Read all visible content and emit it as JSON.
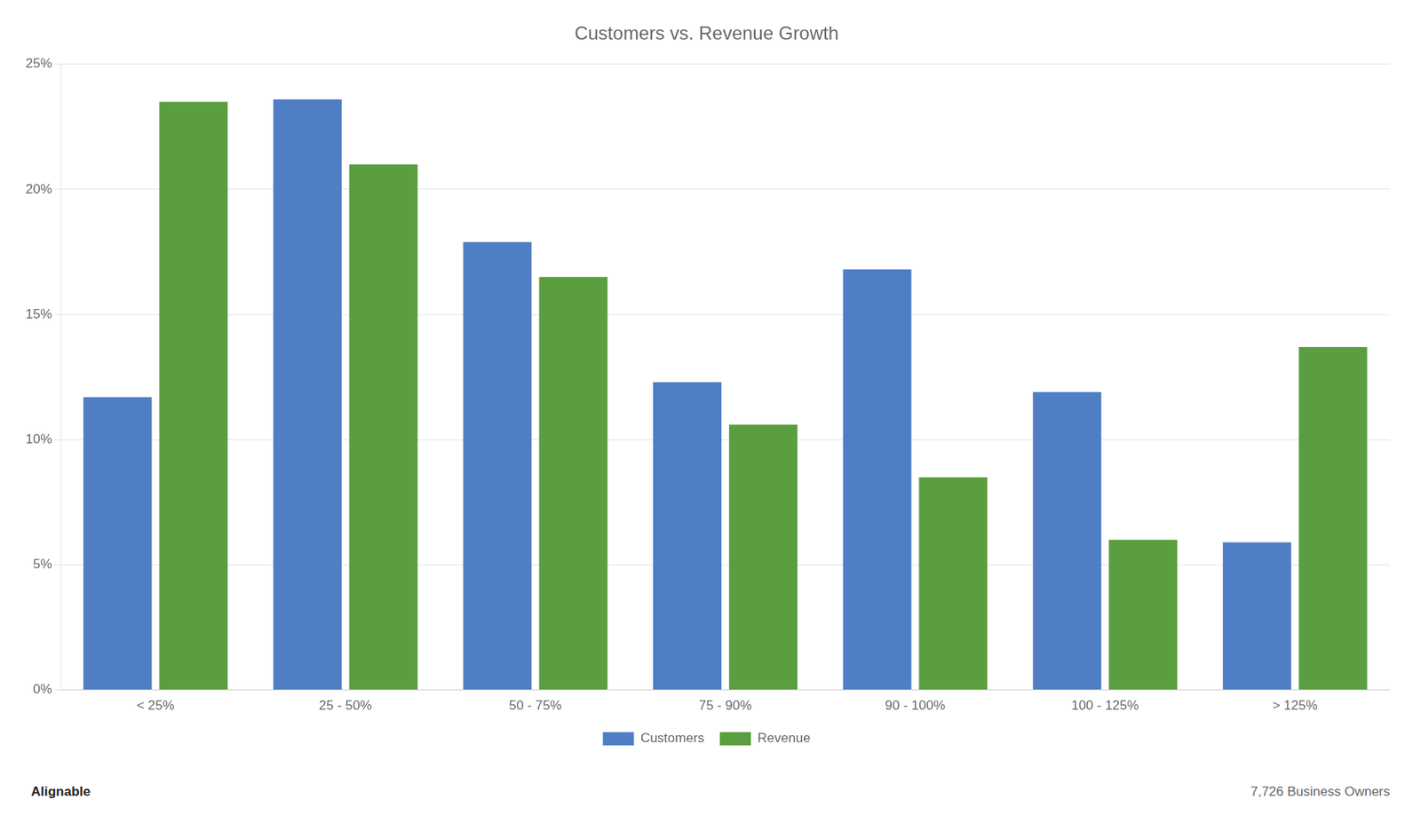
{
  "chart_data": {
    "type": "bar",
    "title": "Customers vs. Revenue Growth",
    "categories": [
      "< 25%",
      "25 - 50%",
      "50 - 75%",
      "75 - 90%",
      "90 - 100%",
      "100 - 125%",
      "> 125%"
    ],
    "series": [
      {
        "name": "Customers",
        "color": "#4F7EC5",
        "values": [
          11.7,
          23.6,
          17.9,
          12.3,
          16.8,
          11.9,
          5.9
        ]
      },
      {
        "name": "Revenue",
        "color": "#5B9E40",
        "values": [
          23.5,
          21.0,
          16.5,
          10.6,
          8.5,
          6.0,
          13.7
        ]
      }
    ],
    "ylim": [
      0,
      25
    ],
    "yticks": [
      {
        "value": 0,
        "label": "0%"
      },
      {
        "value": 5,
        "label": "5%"
      },
      {
        "value": 10,
        "label": "10%"
      },
      {
        "value": 15,
        "label": "15%"
      },
      {
        "value": 20,
        "label": "20%"
      },
      {
        "value": 25,
        "label": "25%"
      }
    ],
    "grid": true,
    "legend": "bottom",
    "annotations": [
      "Alignable",
      "7,726 Business Owners"
    ]
  }
}
